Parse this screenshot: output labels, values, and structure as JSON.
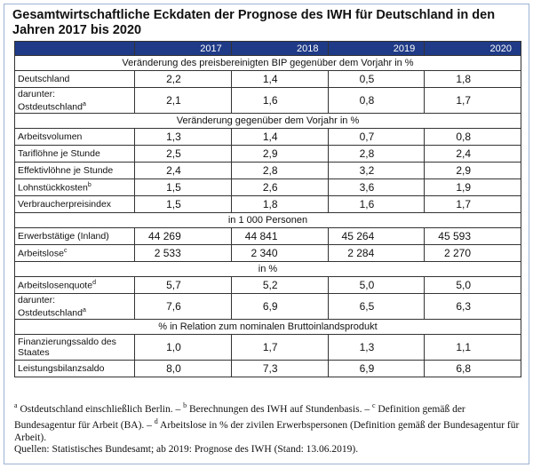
{
  "title": "Gesamtwirtschaftliche Eckdaten der Prognose des IWH für Deutschland in den Jahren 2017 bis 2020",
  "years": [
    "2017",
    "2018",
    "2019",
    "2020"
  ],
  "sections": [
    {
      "heading": "Veränderung des preisbereinigten BIP gegenüber dem Vorjahr in %",
      "rows": [
        {
          "label": "Deutschland",
          "values": [
            "2,2",
            "1,4",
            "0,5",
            "1,8"
          ]
        },
        {
          "label": "darunter:",
          "label2": "Ostdeutschland",
          "sup": "a",
          "values": [
            "2,1",
            "1,6",
            "0,8",
            "1,7"
          ]
        }
      ]
    },
    {
      "heading": "Veränderung gegenüber dem Vorjahr in %",
      "rows": [
        {
          "label": "Arbeitsvolumen",
          "values": [
            "1,3",
            "1,4",
            "0,7",
            "0,8"
          ]
        },
        {
          "label": "Tariflöhne je Stunde",
          "values": [
            "2,5",
            "2,9",
            "2,8",
            "2,4"
          ]
        },
        {
          "label": "Effektivlöhne je Stunde",
          "values": [
            "2,4",
            "2,8",
            "3,2",
            "2,9"
          ]
        },
        {
          "label": "Lohnstückkosten",
          "sup": "b",
          "values": [
            "1,5",
            "2,6",
            "3,6",
            "1,9"
          ]
        },
        {
          "label": "Verbraucherpreisindex",
          "values": [
            "1,5",
            "1,8",
            "1,6",
            "1,7"
          ]
        }
      ]
    },
    {
      "heading": "in 1  000 Personen",
      "rows": [
        {
          "label": "Erwerbstätige (Inland)",
          "values": [
            "44  269",
            "44  841",
            "45  264",
            "45  593"
          ]
        },
        {
          "label": "Arbeitslose",
          "sup": "c",
          "values": [
            "2  533",
            "2  340",
            "2  284",
            "2  270"
          ]
        }
      ]
    },
    {
      "heading": "in %",
      "rows": [
        {
          "label": "Arbeitslosenquote",
          "sup": "d",
          "values": [
            "5,7",
            "5,2",
            "5,0",
            "5,0"
          ]
        },
        {
          "label": "darunter:",
          "label2": "Ostdeutschland",
          "sup": "a",
          "values": [
            "7,6",
            "6,9",
            "6,5",
            "6,3"
          ]
        }
      ]
    },
    {
      "heading": "% in Relation zum nominalen Bruttoinlandsprodukt",
      "rows": [
        {
          "label": "Finanzierungssaldo des",
          "label2": "Staates",
          "values": [
            "1,0",
            "1,7",
            "1,3",
            "1,1"
          ]
        },
        {
          "label": "Leistungsbilanzsaldo",
          "values": [
            "8,0",
            "7,3",
            "6,9",
            "6,8"
          ]
        }
      ]
    }
  ],
  "footnotes": "a Ostdeutschland einschließlich Berlin. – b Berechnungen des IWH auf Stundenbasis. – c Definition gemäß der Bundesagentur für Arbeit (BA). – d Arbeitslose in % der zivilen Erwerbspersonen (Definition gemäß der Bundesagentur für Arbeit).",
  "footnote_parts": [
    {
      "sup": "a",
      "text": " Ostdeutschland einschließlich Berlin. – "
    },
    {
      "sup": "b",
      "text": " Berechnungen des IWH auf Stundenbasis. – "
    },
    {
      "sup": "c",
      "text": " Definition gemäß der Bundesagentur für Arbeit (BA). – "
    },
    {
      "sup": "d",
      "text": " Arbeitslose in % der zivilen Erwerbspersonen (Definition gemäß der Bundesagentur für Arbeit)."
    }
  ],
  "source": "Quellen: Statistisches Bundesamt; ab 2019: Prognose des IWH (Stand: 13.06.2019)."
}
